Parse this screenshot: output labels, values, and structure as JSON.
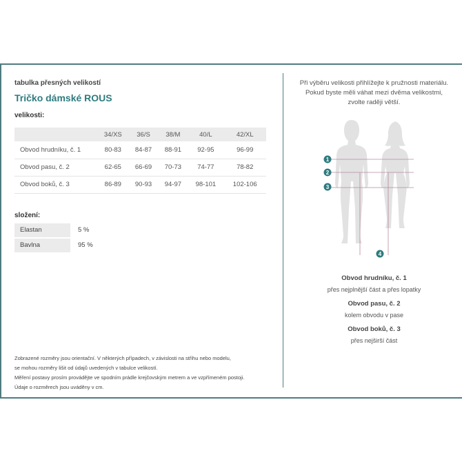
{
  "kicker": "tabulka přesných velikostí",
  "title": "Tričko dámské ROUS",
  "sizes_heading": "velikosti:",
  "table": {
    "headers": [
      "",
      "34/XS",
      "36/S",
      "38/M",
      "40/L",
      "42/XL"
    ],
    "rows": [
      [
        "Obvod hrudníku, č. 1",
        "80-83",
        "84-87",
        "88-91",
        "92-95",
        "96-99"
      ],
      [
        "Obvod pasu, č. 2",
        "62-65",
        "66-69",
        "70-73",
        "74-77",
        "78-82"
      ],
      [
        "Obvod boků, č. 3",
        "86-89",
        "90-93",
        "94-97",
        "98-101",
        "102-106"
      ]
    ]
  },
  "composition_heading": "složení:",
  "composition": [
    [
      "Elastan",
      "5 %"
    ],
    [
      "Bavlna",
      "95 %"
    ]
  ],
  "notes": [
    "Zobrazené rozměry jsou orientační. V některých případech, v závislosti na střihu nebo modelu,",
    "se mohou rozměry lišit od údajů uvedených v tabulce velikostí.",
    "Měření postavy prosím provádějte ve spodním prádle krejčovským metrem a ve vzpřímeném postoji.",
    "Údaje o rozměrech jsou uváděny v cm."
  ],
  "advice": [
    "Při výběru velikosti přihlížejte k pružnosti materiálu.",
    "Pokud byste měli váhat mezi dvěma velikostmi,",
    "zvolte raději větší."
  ],
  "markers": [
    "1",
    "2",
    "3",
    "4"
  ],
  "legend": [
    {
      "h": "Obvod hrudníku, č. 1",
      "d": "přes nejplnější část a přes lopatky"
    },
    {
      "h": "Obvod pasu, č. 2",
      "d": "kolem obvodu v pase"
    },
    {
      "h": "Obvod boků, č. 3",
      "d": "přes nejširší část"
    }
  ],
  "colors": {
    "accent": "#2e7b7f",
    "border": "#4f7c7f"
  }
}
